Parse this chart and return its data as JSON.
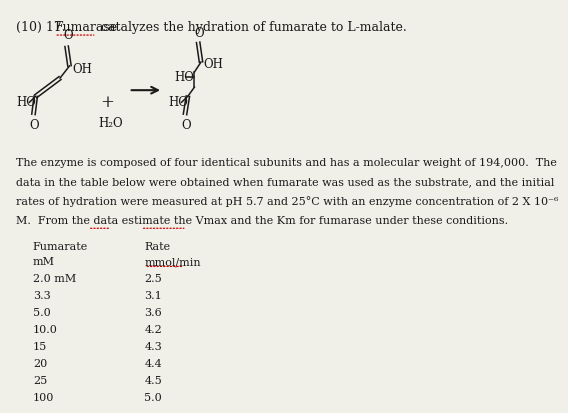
{
  "title_prefix": "(10) 17. ",
  "title_underline": "Fumarase",
  "title_suffix": " catalyzes the hydration of fumarate to L-malate.",
  "col1_header": "Fumarate",
  "col1_subheader": "mM",
  "col2_header": "Rate",
  "col2_subheader": "mmol/min",
  "fumarate_values": [
    "2.0 mM",
    "3.3",
    "5.0",
    "10.0",
    "15",
    "20",
    "25",
    "100"
  ],
  "rate_values": [
    "2.5",
    "3.1",
    "3.6",
    "4.2",
    "4.3",
    "4.4",
    "4.5",
    "5.0"
  ],
  "bg_color": "#f0efe8",
  "text_color": "#1a1a1a",
  "underline_color": "#cc0000",
  "font_size_title": 9.0,
  "font_size_body": 8.0,
  "font_size_table": 8.0,
  "para_lines": [
    "The enzyme is composed of four identical subunits and has a molecular weight of 194,000.  The",
    "data in the table below were obtained when fumarate was used as the substrate, and the initial",
    "rates of hydration were measured at pH 5.7 and 25°C with an enzyme concentration of 2 X 10⁻⁶",
    "M.  From the data estimate the Vmax and the Km for fumarase under these conditions."
  ]
}
